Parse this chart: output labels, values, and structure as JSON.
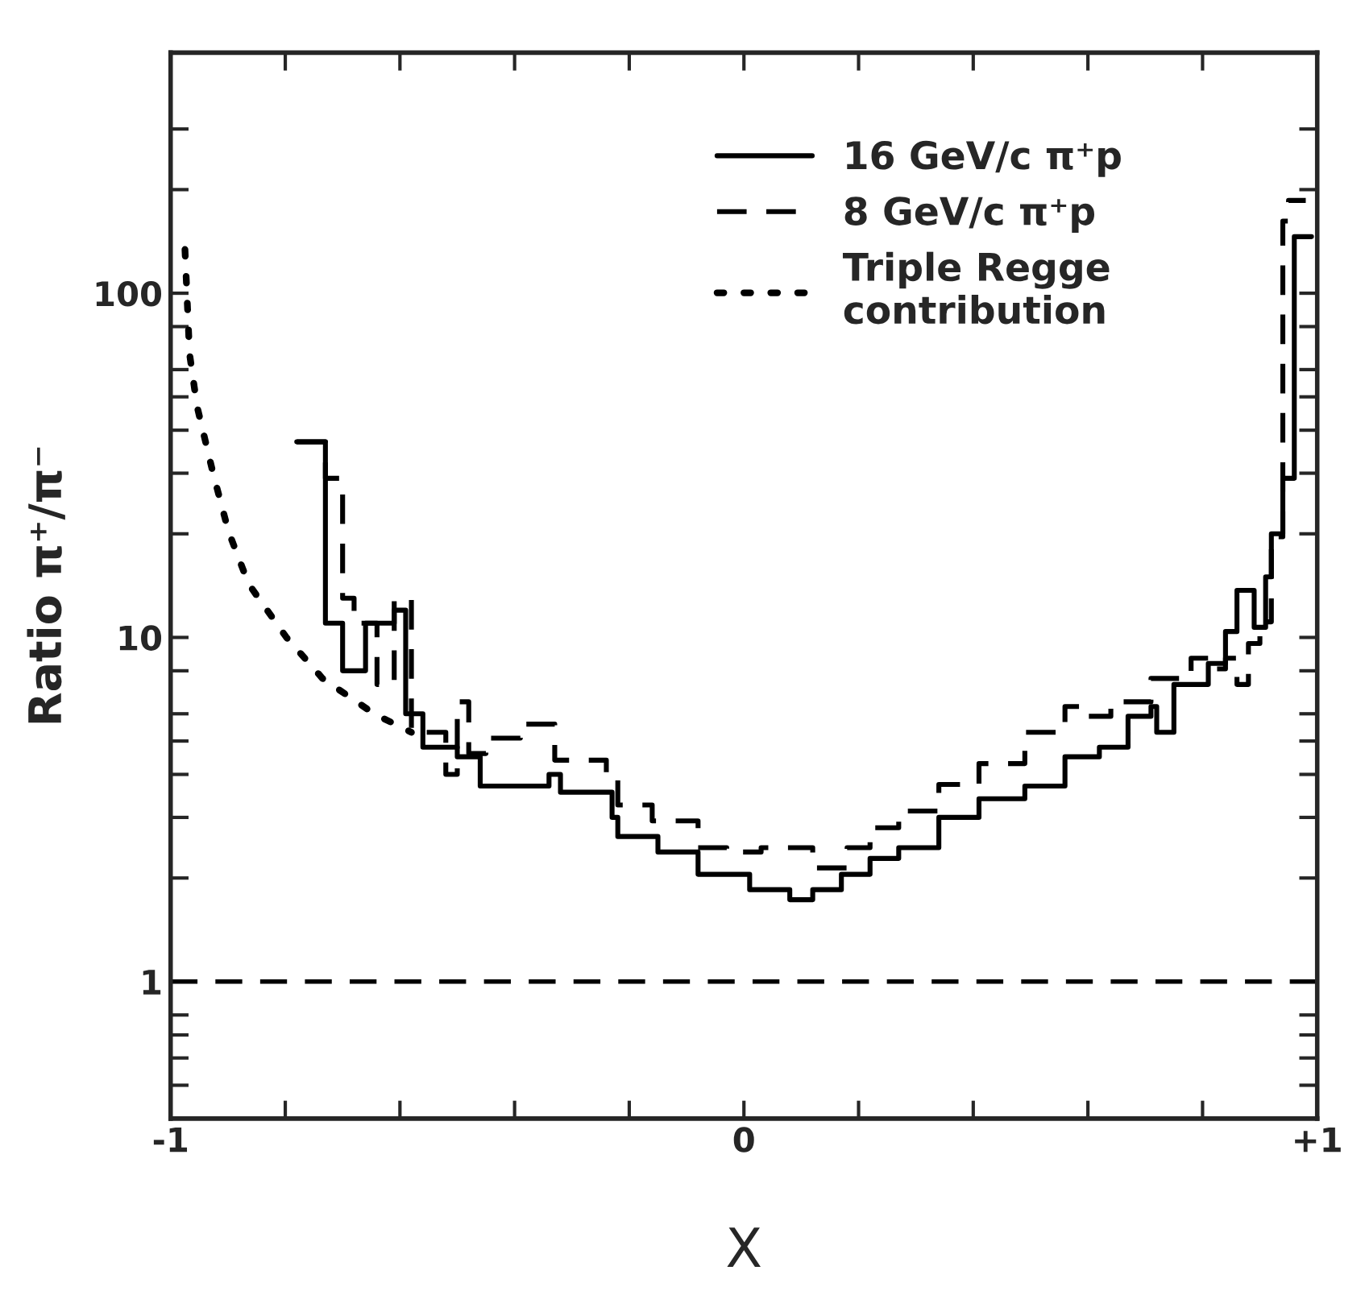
{
  "chart_data": {
    "type": "step",
    "xlabel": "X",
    "ylabel": "Ratio π⁺/π⁻",
    "log": "y",
    "grid": false,
    "legend": "top right",
    "xlim": [
      -1,
      1
    ],
    "ylim": [
      0.4,
      500
    ],
    "xticks": [
      {
        "value": -1,
        "label": "-1"
      },
      {
        "value": -0.8,
        "label": null
      },
      {
        "value": -0.6,
        "label": null
      },
      {
        "value": -0.4,
        "label": null
      },
      {
        "value": -0.2,
        "label": null
      },
      0,
      {
        "value": 0.2,
        "label": null
      },
      {
        "value": 0.4,
        "label": null
      },
      {
        "value": 0.6,
        "label": null
      },
      {
        "value": 0.8,
        "label": null
      },
      {
        "value": 1,
        "label": "+1"
      }
    ],
    "yticks": [
      {
        "value": 0.5,
        "label": null
      },
      {
        "value": 0.6,
        "label": null
      },
      {
        "value": 0.7,
        "label": null
      },
      {
        "value": 0.8,
        "label": null
      },
      1,
      {
        "value": 2,
        "label": null
      },
      {
        "value": 3,
        "label": null
      },
      {
        "value": 4,
        "label": null
      },
      {
        "value": 5,
        "label": null
      },
      {
        "value": 6,
        "label": null
      },
      {
        "value": 8,
        "label": null
      },
      10,
      {
        "value": 20,
        "label": null
      },
      {
        "value": 30,
        "label": null
      },
      {
        "value": 40,
        "label": null
      },
      {
        "value": 50,
        "label": null
      },
      {
        "value": 60,
        "label": null
      },
      {
        "value": 80,
        "label": null
      },
      100,
      {
        "value": 200,
        "label": null
      },
      {
        "value": 300,
        "label": null
      }
    ],
    "ref_lines": [
      {
        "axis": "y",
        "value": 1,
        "line_style": "dashed",
        "color": "#000000"
      }
    ],
    "series": [
      {
        "name": "16 GeV/c π⁺p",
        "line_style": "solid",
        "color": "#000000",
        "x": [
          -0.78,
          -0.73,
          -0.7,
          -0.66,
          -0.61,
          -0.59,
          -0.56,
          -0.5,
          -0.46,
          -0.34,
          -0.32,
          -0.23,
          -0.22,
          -0.15,
          -0.08,
          0.01,
          0.08,
          0.12,
          0.17,
          0.22,
          0.27,
          0.34,
          0.41,
          0.49,
          0.56,
          0.62,
          0.67,
          0.71,
          0.72,
          0.75,
          0.81,
          0.84,
          0.86,
          0.89,
          0.91,
          0.92,
          0.94,
          0.96,
          0.99
        ],
        "values": [
          37,
          11,
          8.0,
          11,
          12,
          6.0,
          4.8,
          4.5,
          3.7,
          4.0,
          3.55,
          3.0,
          2.64,
          2.38,
          2.05,
          1.85,
          1.73,
          1.85,
          2.05,
          2.28,
          2.45,
          3.0,
          3.4,
          3.7,
          4.5,
          4.8,
          5.9,
          6.3,
          5.3,
          7.3,
          8.4,
          10.4,
          13.7,
          10.7,
          15,
          20,
          29,
          146,
          146
        ]
      },
      {
        "name": "8 GeV/c π⁺p",
        "line_style": "dashed",
        "color": "#000000",
        "x": [
          -0.78,
          -0.73,
          -0.7,
          -0.68,
          -0.64,
          -0.61,
          -0.58,
          -0.52,
          -0.5,
          -0.48,
          -0.45,
          -0.39,
          -0.33,
          -0.24,
          -0.22,
          -0.16,
          -0.08,
          -0.03,
          0.03,
          0.12,
          0.18,
          0.22,
          0.27,
          0.34,
          0.41,
          0.49,
          0.56,
          0.6,
          0.64,
          0.71,
          0.78,
          0.82,
          0.84,
          0.86,
          0.88,
          0.9,
          0.92,
          0.94,
          0.95,
          0.98
        ],
        "values": [
          37,
          29,
          13,
          11,
          7.3,
          12.9,
          5.3,
          4.0,
          6.5,
          4.6,
          5.1,
          5.6,
          4.4,
          4.0,
          3.26,
          2.93,
          2.45,
          2.38,
          2.45,
          2.14,
          2.45,
          2.8,
          3.13,
          3.74,
          4.3,
          5.3,
          6.3,
          5.9,
          6.5,
          7.6,
          8.7,
          8.1,
          8.7,
          7.3,
          9.6,
          11.1,
          19.6,
          162,
          186,
          186
        ]
      },
      {
        "name": "Triple Regge\ncontribution",
        "type": "line",
        "line_style": "dotted",
        "color": "#000000",
        "x": [
          -0.975,
          -0.967,
          -0.954,
          -0.926,
          -0.899,
          -0.864,
          -0.798,
          -0.735,
          -0.645,
          -0.58
        ],
        "values": [
          134,
          66.7,
          47,
          30,
          20.3,
          14.3,
          10,
          7.6,
          6.0,
          5.3
        ]
      }
    ]
  }
}
